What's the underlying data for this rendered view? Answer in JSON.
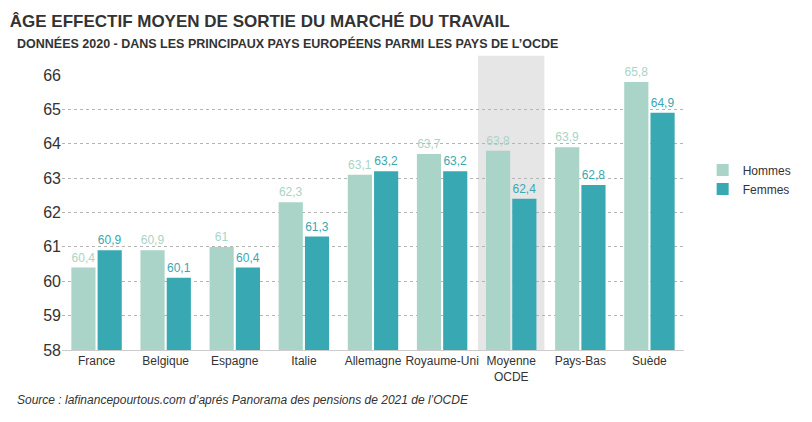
{
  "chart_data": {
    "type": "bar",
    "title": "ÂGE EFFECTIF MOYEN DE SORTIE DU MARCHÉ DU TRAVAIL",
    "subtitle": "DONNÉES 2020 - DANS LES PRINCIPAUX PAYS EUROPÉENS PARMI LES PAYS DE L’OCDE",
    "source": "Source : lafinancepourtous.com d’aprés Panorama des pensions de 2021 de l’OCDE",
    "categories": [
      "France",
      "Belgique",
      "Espagne",
      "Italie",
      "Allemagne",
      "Royaume-Uni",
      "Moyenne OCDE",
      "Pays-Bas",
      "Suède"
    ],
    "series": [
      {
        "name": "Hommes",
        "color": "#a9d4c7",
        "values": [
          60.4,
          60.9,
          61,
          62.3,
          63.1,
          63.7,
          63.8,
          63.9,
          65.8
        ],
        "value_labels": [
          "60,4",
          "60,9",
          "61",
          "62,3",
          "63,1",
          "63,7",
          "63,8",
          "63,9",
          "65,8"
        ]
      },
      {
        "name": "Femmes",
        "color": "#38a8b2",
        "values": [
          60.9,
          60.1,
          60.4,
          61.3,
          63.2,
          63.2,
          62.4,
          62.8,
          64.9
        ],
        "value_labels": [
          "60,9",
          "60,1",
          "60,4",
          "61,3",
          "63,2",
          "63,2",
          "62,4",
          "62,8",
          "64,9"
        ]
      }
    ],
    "ylim": [
      58,
      66
    ],
    "yticks": [
      58,
      59,
      60,
      61,
      62,
      63,
      64,
      65,
      66
    ],
    "grid": true,
    "data_labels": true,
    "legend": "right"
  }
}
